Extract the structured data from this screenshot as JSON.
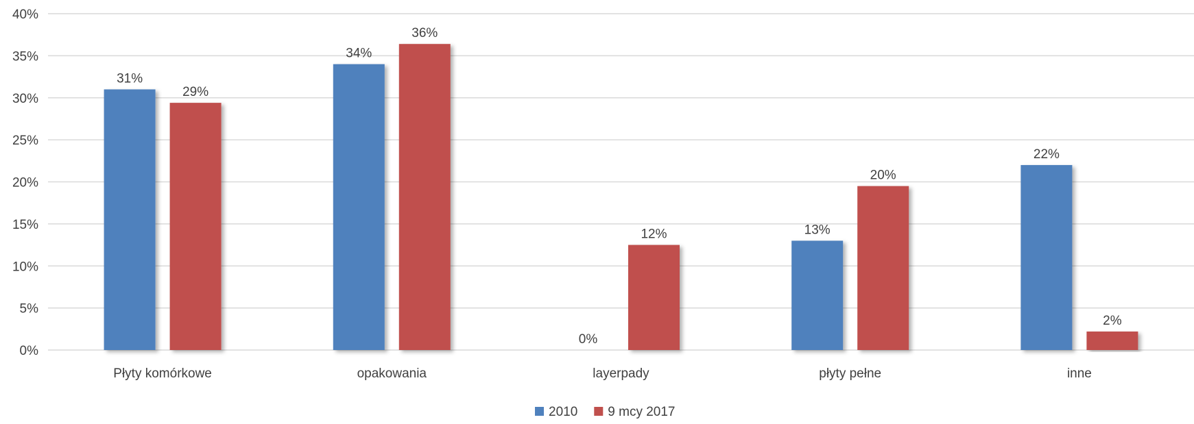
{
  "chart_data": {
    "type": "bar",
    "categories": [
      "Płyty komórkowe",
      "opakowania",
      "layerpady",
      "płyty pełne",
      "inne"
    ],
    "series": [
      {
        "name": "2010",
        "color": "#4f81bd",
        "values": [
          31,
          34,
          0,
          13,
          22
        ],
        "labels": [
          "31%",
          "34%",
          "0%",
          "13%",
          "22%"
        ]
      },
      {
        "name": "9 mcy 2017",
        "color": "#c0504d",
        "values": [
          29.4,
          36.4,
          12.5,
          19.5,
          2.2
        ],
        "labels": [
          "29%",
          "36%",
          "12%",
          "20%",
          "2%"
        ]
      }
    ],
    "ylim": [
      0,
      40
    ],
    "yticks": [
      "0%",
      "5%",
      "10%",
      "15%",
      "20%",
      "25%",
      "30%",
      "35%",
      "40%"
    ],
    "grid": true,
    "legend_position": "bottom"
  }
}
